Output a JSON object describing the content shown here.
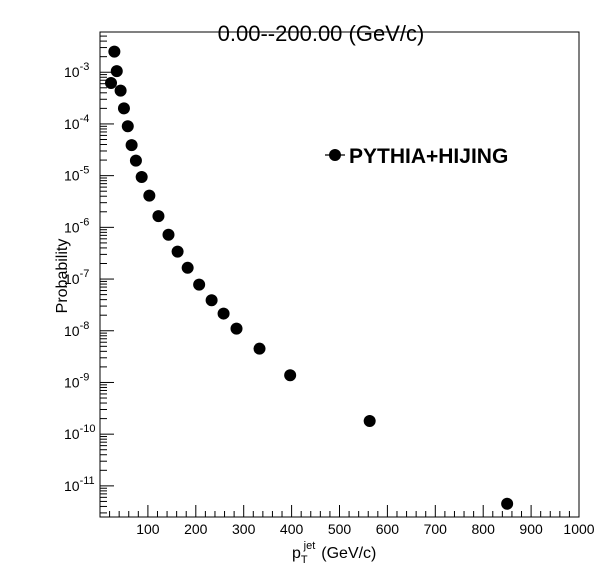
{
  "chart_data": {
    "type": "scatter",
    "title": "0.00--200.00 (GeV/c)",
    "xlabel": {
      "main": "p",
      "sub": "T",
      "sup": "jet",
      "unit": "(GeV/c)"
    },
    "ylabel": "Probability",
    "xlim": [
      0,
      1000
    ],
    "ylim": [
      2.5e-12,
      0.006
    ],
    "yscale": "log",
    "grid": false,
    "legend_position": "top-right",
    "marker": "filled-circle",
    "color": "#000000",
    "x_ticks": [
      100,
      200,
      300,
      400,
      500,
      600,
      700,
      800,
      900,
      1000
    ],
    "x_tick_labels": [
      "100",
      "200",
      "300",
      "400",
      "500",
      "600",
      "700",
      "800",
      "900",
      "1000"
    ],
    "y_ticks": [
      {
        "value": 1e-11,
        "mantissa": "10",
        "exponent": "-11"
      },
      {
        "value": 1e-10,
        "mantissa": "10",
        "exponent": "-10"
      },
      {
        "value": 1e-09,
        "mantissa": "10",
        "exponent": "-9"
      },
      {
        "value": 1e-08,
        "mantissa": "10",
        "exponent": "-8"
      },
      {
        "value": 1e-07,
        "mantissa": "10",
        "exponent": "-7"
      },
      {
        "value": 1e-06,
        "mantissa": "10",
        "exponent": "-6"
      },
      {
        "value": 1e-05,
        "mantissa": "10",
        "exponent": "-5"
      },
      {
        "value": 0.0001,
        "mantissa": "10",
        "exponent": "-4"
      },
      {
        "value": 0.001,
        "mantissa": "10",
        "exponent": "-3"
      }
    ],
    "series": [
      {
        "name": "PYTHIA+HIJING",
        "points": [
          {
            "x": 23,
            "y": 0.00062
          },
          {
            "x": 30,
            "y": 0.0025
          },
          {
            "x": 35,
            "y": 0.00105
          },
          {
            "x": 43,
            "y": 0.00044
          },
          {
            "x": 50,
            "y": 0.0002
          },
          {
            "x": 58,
            "y": 9e-05
          },
          {
            "x": 66,
            "y": 3.9e-05
          },
          {
            "x": 75,
            "y": 1.95e-05
          },
          {
            "x": 87,
            "y": 9.4e-06
          },
          {
            "x": 103,
            "y": 4.1e-06
          },
          {
            "x": 122,
            "y": 1.65e-06
          },
          {
            "x": 143,
            "y": 7.2e-07
          },
          {
            "x": 162,
            "y": 3.4e-07
          },
          {
            "x": 183,
            "y": 1.65e-07
          },
          {
            "x": 207,
            "y": 7.8e-08
          },
          {
            "x": 233,
            "y": 3.9e-08
          },
          {
            "x": 258,
            "y": 2.15e-08
          },
          {
            "x": 285,
            "y": 1.1e-08
          },
          {
            "x": 333,
            "y": 4.5e-09
          },
          {
            "x": 397,
            "y": 1.38e-09
          },
          {
            "x": 563,
            "y": 1.8e-10
          },
          {
            "x": 850,
            "y": 4.5e-12
          }
        ]
      }
    ]
  }
}
